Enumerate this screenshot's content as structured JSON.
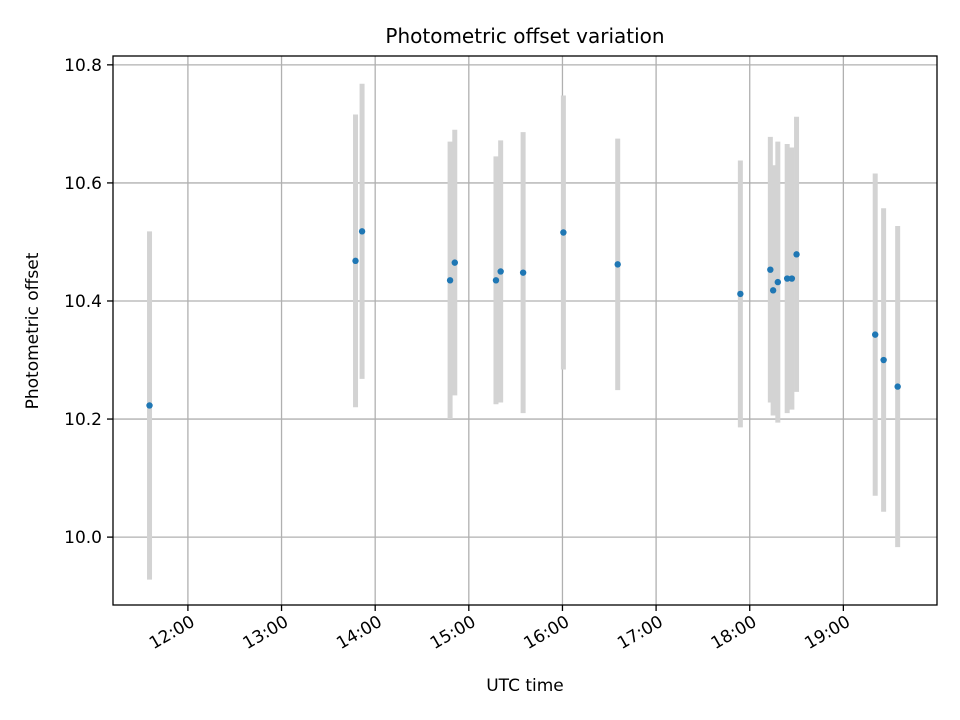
{
  "chart_data": {
    "type": "scatter",
    "title": "Photometric offset variation",
    "xlabel": "UTC time",
    "ylabel": "Photometric offset",
    "x_unit": "hours UTC",
    "xlim": [
      11.2,
      20.0
    ],
    "ylim": [
      9.885,
      10.815
    ],
    "x_ticks": [
      {
        "value": 12,
        "label": "12:00"
      },
      {
        "value": 13,
        "label": "13:00"
      },
      {
        "value": 14,
        "label": "14:00"
      },
      {
        "value": 15,
        "label": "15:00"
      },
      {
        "value": 16,
        "label": "16:00"
      },
      {
        "value": 17,
        "label": "17:00"
      },
      {
        "value": 18,
        "label": "18:00"
      },
      {
        "value": 19,
        "label": "19:00"
      }
    ],
    "y_ticks": [
      {
        "value": 10.0,
        "label": "10.0"
      },
      {
        "value": 10.2,
        "label": "10.2"
      },
      {
        "value": 10.4,
        "label": "10.4"
      },
      {
        "value": 10.6,
        "label": "10.6"
      },
      {
        "value": 10.8,
        "label": "10.8"
      }
    ],
    "grid": true,
    "marker_color": "#1f77b4",
    "errorbar_color": "#d3d3d3",
    "points": [
      {
        "x": 11.59,
        "y": 10.223,
        "err": 0.295
      },
      {
        "x": 13.79,
        "y": 10.468,
        "err": 0.248
      },
      {
        "x": 13.86,
        "y": 10.518,
        "err": 0.25
      },
      {
        "x": 14.8,
        "y": 10.435,
        "err": 0.235
      },
      {
        "x": 14.85,
        "y": 10.465,
        "err": 0.225
      },
      {
        "x": 15.29,
        "y": 10.435,
        "err": 0.21
      },
      {
        "x": 15.34,
        "y": 10.45,
        "err": 0.222
      },
      {
        "x": 15.58,
        "y": 10.448,
        "err": 0.238
      },
      {
        "x": 16.01,
        "y": 10.516,
        "err": 0.232
      },
      {
        "x": 16.59,
        "y": 10.462,
        "err": 0.213
      },
      {
        "x": 17.9,
        "y": 10.412,
        "err": 0.226
      },
      {
        "x": 18.22,
        "y": 10.453,
        "err": 0.225
      },
      {
        "x": 18.25,
        "y": 10.418,
        "err": 0.212
      },
      {
        "x": 18.3,
        "y": 10.432,
        "err": 0.238
      },
      {
        "x": 18.4,
        "y": 10.438,
        "err": 0.228
      },
      {
        "x": 18.45,
        "y": 10.438,
        "err": 0.222
      },
      {
        "x": 18.5,
        "y": 10.479,
        "err": 0.233
      },
      {
        "x": 19.34,
        "y": 10.343,
        "err": 0.273
      },
      {
        "x": 19.43,
        "y": 10.3,
        "err": 0.257
      },
      {
        "x": 19.58,
        "y": 10.255,
        "err": 0.272
      }
    ]
  }
}
